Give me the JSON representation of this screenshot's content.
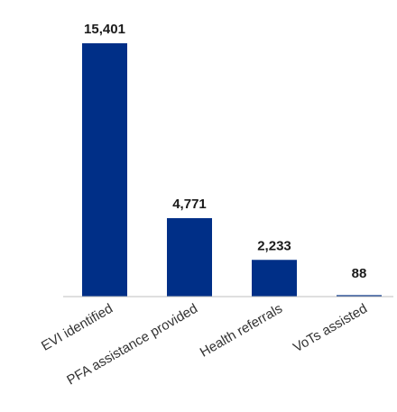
{
  "chart_data": {
    "type": "bar",
    "categories": [
      "EVI identified",
      "PFA assistance provided",
      "Health referrals",
      "VoTs assisted"
    ],
    "values": [
      15401,
      4771,
      2233,
      88
    ],
    "value_labels": [
      "15,401",
      "4,771",
      "2,233",
      "88"
    ],
    "ylim": [
      0,
      15401
    ],
    "grid": false,
    "legend": "none",
    "colors": {
      "bar": "#002F87",
      "baseline": "#BFBFBF",
      "label": "#1A1A1A"
    }
  }
}
